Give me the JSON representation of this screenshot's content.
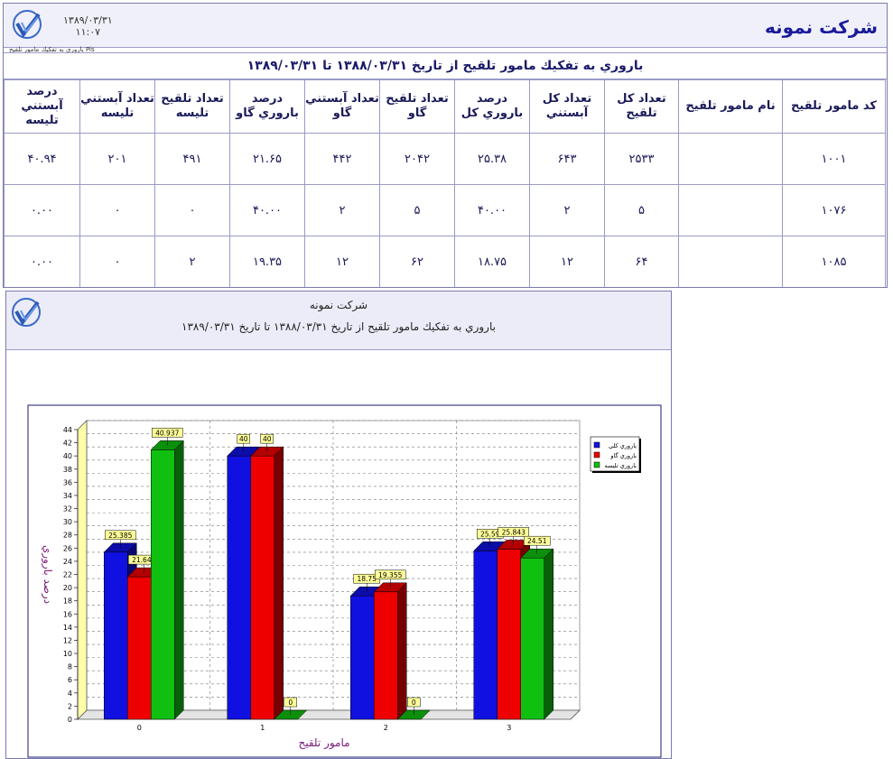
{
  "report": {
    "date": "۱۳۸۹/۰۳/۳۱",
    "time": "۱۱:۰۷",
    "subtitle": "باروري به تفكيك مامور تلقيح Pis",
    "company": "شركت نمونه",
    "title": "باروري به تفكيك مامور تلقيح از تاريخ ۱۳۸۸/۰۳/۳۱ تا ۱۳۸۹/۰۳/۳۱",
    "columns": [
      "كد مامور تلقيح",
      "نام مامور تلقيح",
      "تعداد كل تلقيح",
      "تعداد كل آبستني",
      "درصد باروري كل",
      "تعداد تلقيح گاو",
      "تعداد آبستني گاو",
      "درصد باروري گاو",
      "تعداد تلقيح تليسه",
      "تعداد آبستني تليسه",
      "درصد آبستني تليسه"
    ],
    "rows": [
      [
        "۱۰۰۱",
        "",
        "۲۵۳۳",
        "۶۴۳",
        "۲۵.۳۸",
        "۲۰۴۲",
        "۴۴۲",
        "۲۱.۶۵",
        "۴۹۱",
        "۲۰۱",
        "۴۰.۹۴"
      ],
      [
        "۱۰۷۶",
        "",
        "۵",
        "۲",
        "۴۰.۰۰",
        "۵",
        "۲",
        "۴۰.۰۰",
        "۰",
        "۰",
        "۰.۰۰"
      ],
      [
        "۱۰۸۵",
        "",
        "۶۴",
        "۱۲",
        "۱۸.۷۵",
        "۶۲",
        "۱۲",
        "۱۹.۳۵",
        "۲",
        "۰",
        "۰.۰۰"
      ]
    ]
  },
  "chart_panel": {
    "company": "شركت نمونه",
    "title": "باروري به تفكيك مامور تلقيح از تاريخ ۱۳۸۸/۰۳/۳۱ تا تاريخ ۱۳۸۹/۰۳/۳۱"
  },
  "chart_data": {
    "type": "bar",
    "categories": [
      "0",
      "1",
      "2",
      "3"
    ],
    "series": [
      {
        "name": "باروري كلي",
        "color": "#1010e0",
        "values": [
          25.385,
          40,
          18.75,
          25.59
        ],
        "labels": [
          "25.385",
          "40",
          "18.75",
          "25.59"
        ]
      },
      {
        "name": "باروري گاو",
        "color": "#ee0000",
        "values": [
          21.645,
          40,
          19.355,
          25.843
        ],
        "labels": [
          "21.645",
          "40",
          "19.355",
          "25.843"
        ]
      },
      {
        "name": "باروري تليسه",
        "color": "#10c010",
        "values": [
          40.937,
          0,
          0,
          24.51
        ],
        "labels": [
          "40.937",
          "0",
          "0",
          "24.51"
        ]
      }
    ],
    "xlabel": "مامور تلقيح",
    "ylabel": "درصد باروري",
    "ylim": [
      0,
      44
    ],
    "ytick_step": 2,
    "grid": true,
    "legend": "top-right"
  }
}
